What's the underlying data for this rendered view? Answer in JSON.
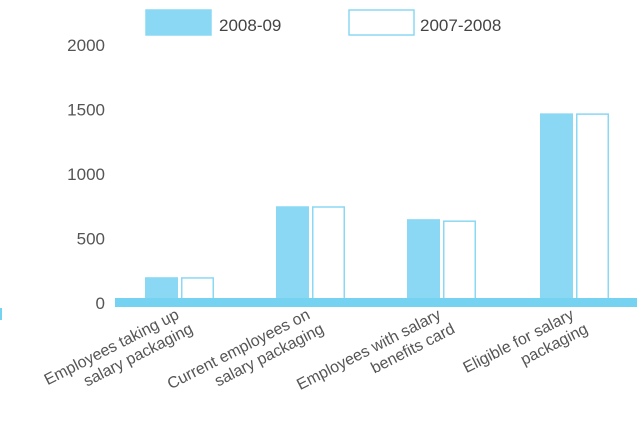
{
  "chart_data": {
    "type": "bar",
    "categories": [
      [
        "Employees taking up",
        "salary packaging"
      ],
      [
        "Current employees on",
        "salary packaging"
      ],
      [
        "Employees with salary",
        "benefits card"
      ],
      [
        "Eligible for salary",
        "packaging"
      ]
    ],
    "series": [
      {
        "name": "2008-09",
        "values": [
          200,
          750,
          650,
          1470
        ],
        "style": "filled"
      },
      {
        "name": "2007-2008",
        "values": [
          200,
          750,
          640,
          1470
        ],
        "style": "outline"
      }
    ],
    "yticks": [
      0,
      500,
      1000,
      1500,
      2000
    ],
    "ylim": [
      0,
      2000
    ],
    "legend_position": "top",
    "grid": false,
    "colors": {
      "bar": "#8ad8f3",
      "axis": "#75d3f1",
      "text": "#555555",
      "legend_text": "#444444",
      "background": "#ffffff"
    }
  }
}
